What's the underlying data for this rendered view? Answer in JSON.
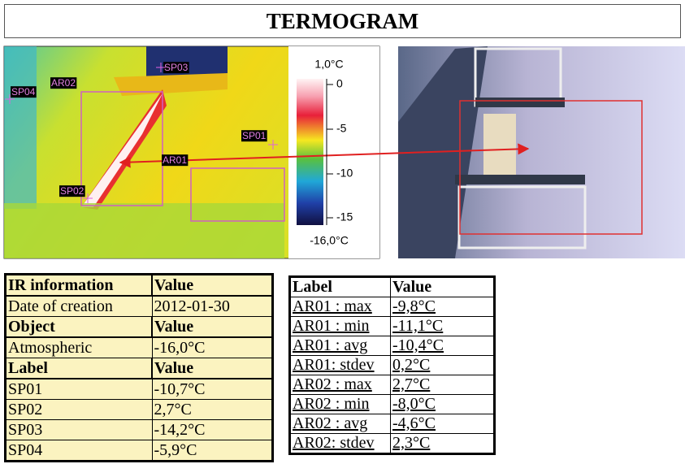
{
  "header": {
    "title": "TERMOGRAM"
  },
  "thermogram": {
    "markers": [
      "SP03",
      "AR02",
      "SP04",
      "SP01",
      "AR01",
      "SP02"
    ],
    "scale": {
      "max": "1,0°C",
      "ticks": [
        "0",
        "-5",
        "-10",
        "-15"
      ],
      "min": "-16,0°C"
    }
  },
  "ir_table": {
    "sections": [
      {
        "header": [
          "IR information",
          "Value"
        ],
        "rows": [
          [
            "Date of creation",
            "2012-01-30"
          ]
        ]
      },
      {
        "header": [
          "Object",
          "Value"
        ],
        "rows": [
          [
            "Atmospheric",
            "-16,0°C"
          ]
        ]
      },
      {
        "header": [
          "Label",
          "Value"
        ],
        "rows": [
          [
            "SP01",
            "-10,7°C"
          ],
          [
            "SP02",
            "2,7°C"
          ],
          [
            "SP03",
            "-14,2°C"
          ],
          [
            "SP04",
            "-5,9°C"
          ]
        ]
      }
    ]
  },
  "stats_table": {
    "header": [
      "Label",
      "Value"
    ],
    "rows": [
      [
        "AR01 : max",
        "-9,8°C"
      ],
      [
        "AR01 : min",
        "-11,1°C"
      ],
      [
        "AR01 : avg",
        "-10,4°C"
      ],
      [
        "AR01: stdev",
        "0,2°C"
      ],
      [
        "AR02 : max",
        "2,7°C"
      ],
      [
        "AR02 : min",
        "-8,0°C"
      ],
      [
        "AR02 : avg",
        "-4,6°C"
      ],
      [
        "AR02: stdev",
        "2,3°C"
      ]
    ]
  }
}
